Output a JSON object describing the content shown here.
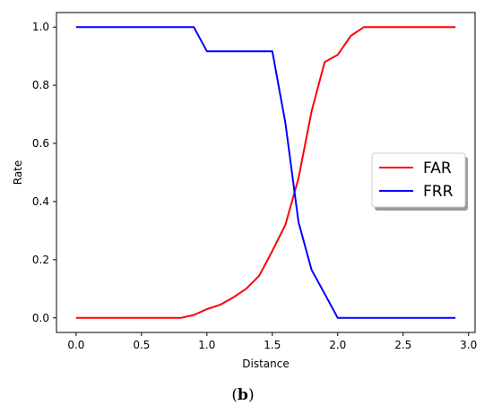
{
  "chart_data": {
    "type": "line",
    "title": "",
    "xlabel": "Distance",
    "ylabel": "Rate",
    "xlim": [
      -0.15,
      3.05
    ],
    "ylim": [
      -0.05,
      1.05
    ],
    "xticks": [
      0.0,
      0.5,
      1.0,
      1.5,
      2.0,
      2.5,
      3.0
    ],
    "xtick_labels": [
      "0.0",
      "0.5",
      "1.0",
      "1.5",
      "2.0",
      "2.5",
      "3.0"
    ],
    "yticks": [
      0.0,
      0.2,
      0.4,
      0.6,
      0.8,
      1.0
    ],
    "ytick_labels": [
      "0.0",
      "0.2",
      "0.4",
      "0.6",
      "0.8",
      "1.0"
    ],
    "grid": false,
    "legend_position": "center-right",
    "series": [
      {
        "name": "FAR",
        "color": "#ff0000",
        "x": [
          0.0,
          0.1,
          0.2,
          0.3,
          0.4,
          0.5,
          0.6,
          0.7,
          0.8,
          0.9,
          1.0,
          1.1,
          1.2,
          1.3,
          1.4,
          1.5,
          1.6,
          1.7,
          1.8,
          1.9,
          2.0,
          2.1,
          2.2,
          2.3,
          2.4,
          2.5,
          2.6,
          2.7,
          2.8,
          2.9
        ],
        "y": [
          0.0,
          0.0,
          0.0,
          0.0,
          0.0,
          0.0,
          0.0,
          0.0,
          0.0,
          0.01,
          0.03,
          0.045,
          0.07,
          0.1,
          0.145,
          0.23,
          0.32,
          0.48,
          0.71,
          0.88,
          0.905,
          0.97,
          1.0,
          1.0,
          1.0,
          1.0,
          1.0,
          1.0,
          1.0,
          1.0
        ]
      },
      {
        "name": "FRR",
        "color": "#0000ff",
        "x": [
          0.0,
          0.1,
          0.2,
          0.3,
          0.4,
          0.5,
          0.6,
          0.7,
          0.8,
          0.9,
          1.0,
          1.1,
          1.2,
          1.3,
          1.4,
          1.5,
          1.6,
          1.7,
          1.8,
          1.9,
          2.0,
          2.1,
          2.2,
          2.3,
          2.4,
          2.5,
          2.6,
          2.7,
          2.8,
          2.9
        ],
        "y": [
          1.0,
          1.0,
          1.0,
          1.0,
          1.0,
          1.0,
          1.0,
          1.0,
          1.0,
          1.0,
          0.917,
          0.917,
          0.917,
          0.917,
          0.917,
          0.917,
          0.67,
          0.33,
          0.165,
          0.083,
          0.0,
          0.0,
          0.0,
          0.0,
          0.0,
          0.0,
          0.0,
          0.0,
          0.0,
          0.0
        ]
      }
    ]
  },
  "caption": {
    "open": "(",
    "label": "b",
    "close": ")"
  }
}
